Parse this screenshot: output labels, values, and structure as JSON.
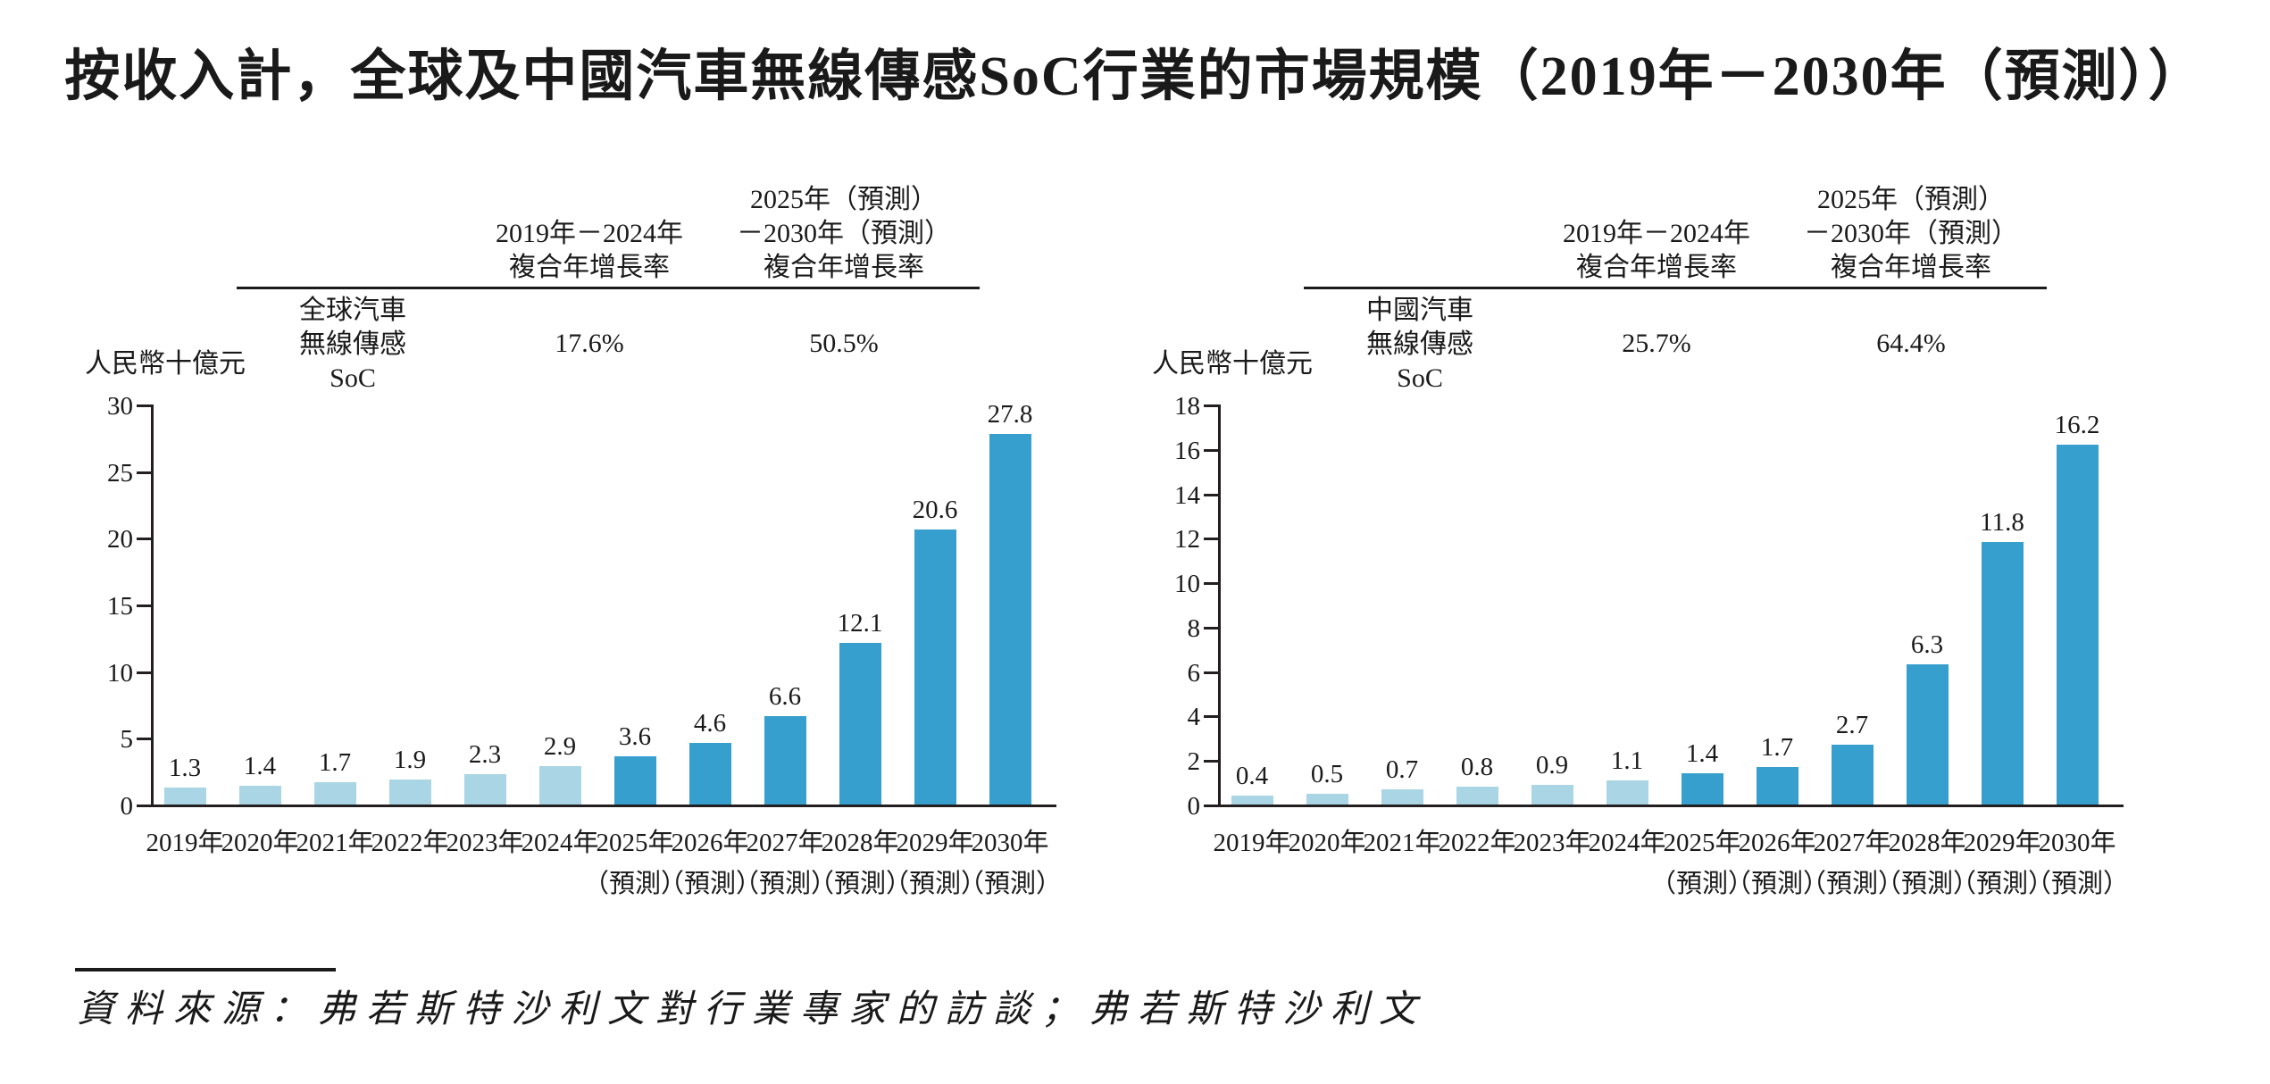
{
  "title": "按收入計，全球及中國汽車無線傳感SoC行業的市場規模（2019年－2030年（預測））",
  "source_note": "資料來源：弗若斯特沙利文對行業專家的訪談；弗若斯特沙利文",
  "colors": {
    "historical_bar": "#aad5e4",
    "forecast_bar": "#379fce",
    "axis": "#231f20",
    "text": "#1a1a1a"
  },
  "chart_data": [
    {
      "type": "bar",
      "name": "全球汽車無線傳感SoC",
      "unit_label": "人民幣十億元",
      "series_label_lines": [
        "全球汽車",
        "無線傳感",
        "SoC"
      ],
      "cagr_columns": [
        {
          "header_lines": [
            "2019年－2024年",
            "複合年增長率"
          ],
          "value": "17.6%"
        },
        {
          "header_lines": [
            "2025年（預測）",
            "－2030年（預測）",
            "複合年增長率"
          ],
          "value": "50.5%"
        }
      ],
      "categories": [
        "2019年",
        "2020年",
        "2021年",
        "2022年",
        "2023年",
        "2024年",
        "2025年",
        "2026年",
        "2027年",
        "2028年",
        "2029年",
        "2030年"
      ],
      "forecast_suffix": "（預測）",
      "forecast_start_index": 6,
      "values": [
        1.3,
        1.4,
        1.7,
        1.9,
        2.3,
        2.9,
        3.6,
        4.6,
        6.6,
        12.1,
        20.6,
        27.8
      ],
      "y_ticks": [
        0,
        5,
        10,
        15,
        20,
        25,
        30
      ],
      "ylim": [
        0,
        30
      ],
      "grid": false,
      "legend": "none"
    },
    {
      "type": "bar",
      "name": "中國汽車無線傳感SoC",
      "unit_label": "人民幣十億元",
      "series_label_lines": [
        "中國汽車",
        "無線傳感",
        "SoC"
      ],
      "cagr_columns": [
        {
          "header_lines": [
            "2019年－2024年",
            "複合年增長率"
          ],
          "value": "25.7%"
        },
        {
          "header_lines": [
            "2025年（預測）",
            "－2030年（預測）",
            "複合年增長率"
          ],
          "value": "64.4%"
        }
      ],
      "categories": [
        "2019年",
        "2020年",
        "2021年",
        "2022年",
        "2023年",
        "2024年",
        "2025年",
        "2026年",
        "2027年",
        "2028年",
        "2029年",
        "2030年"
      ],
      "forecast_suffix": "（預測）",
      "forecast_start_index": 6,
      "values": [
        0.4,
        0.5,
        0.7,
        0.8,
        0.9,
        1.1,
        1.4,
        1.7,
        2.7,
        6.3,
        11.8,
        16.2
      ],
      "y_ticks": [
        0,
        2,
        4,
        6,
        8,
        10,
        12,
        14,
        16,
        18
      ],
      "ylim": [
        0,
        18
      ],
      "grid": false,
      "legend": "none"
    }
  ]
}
